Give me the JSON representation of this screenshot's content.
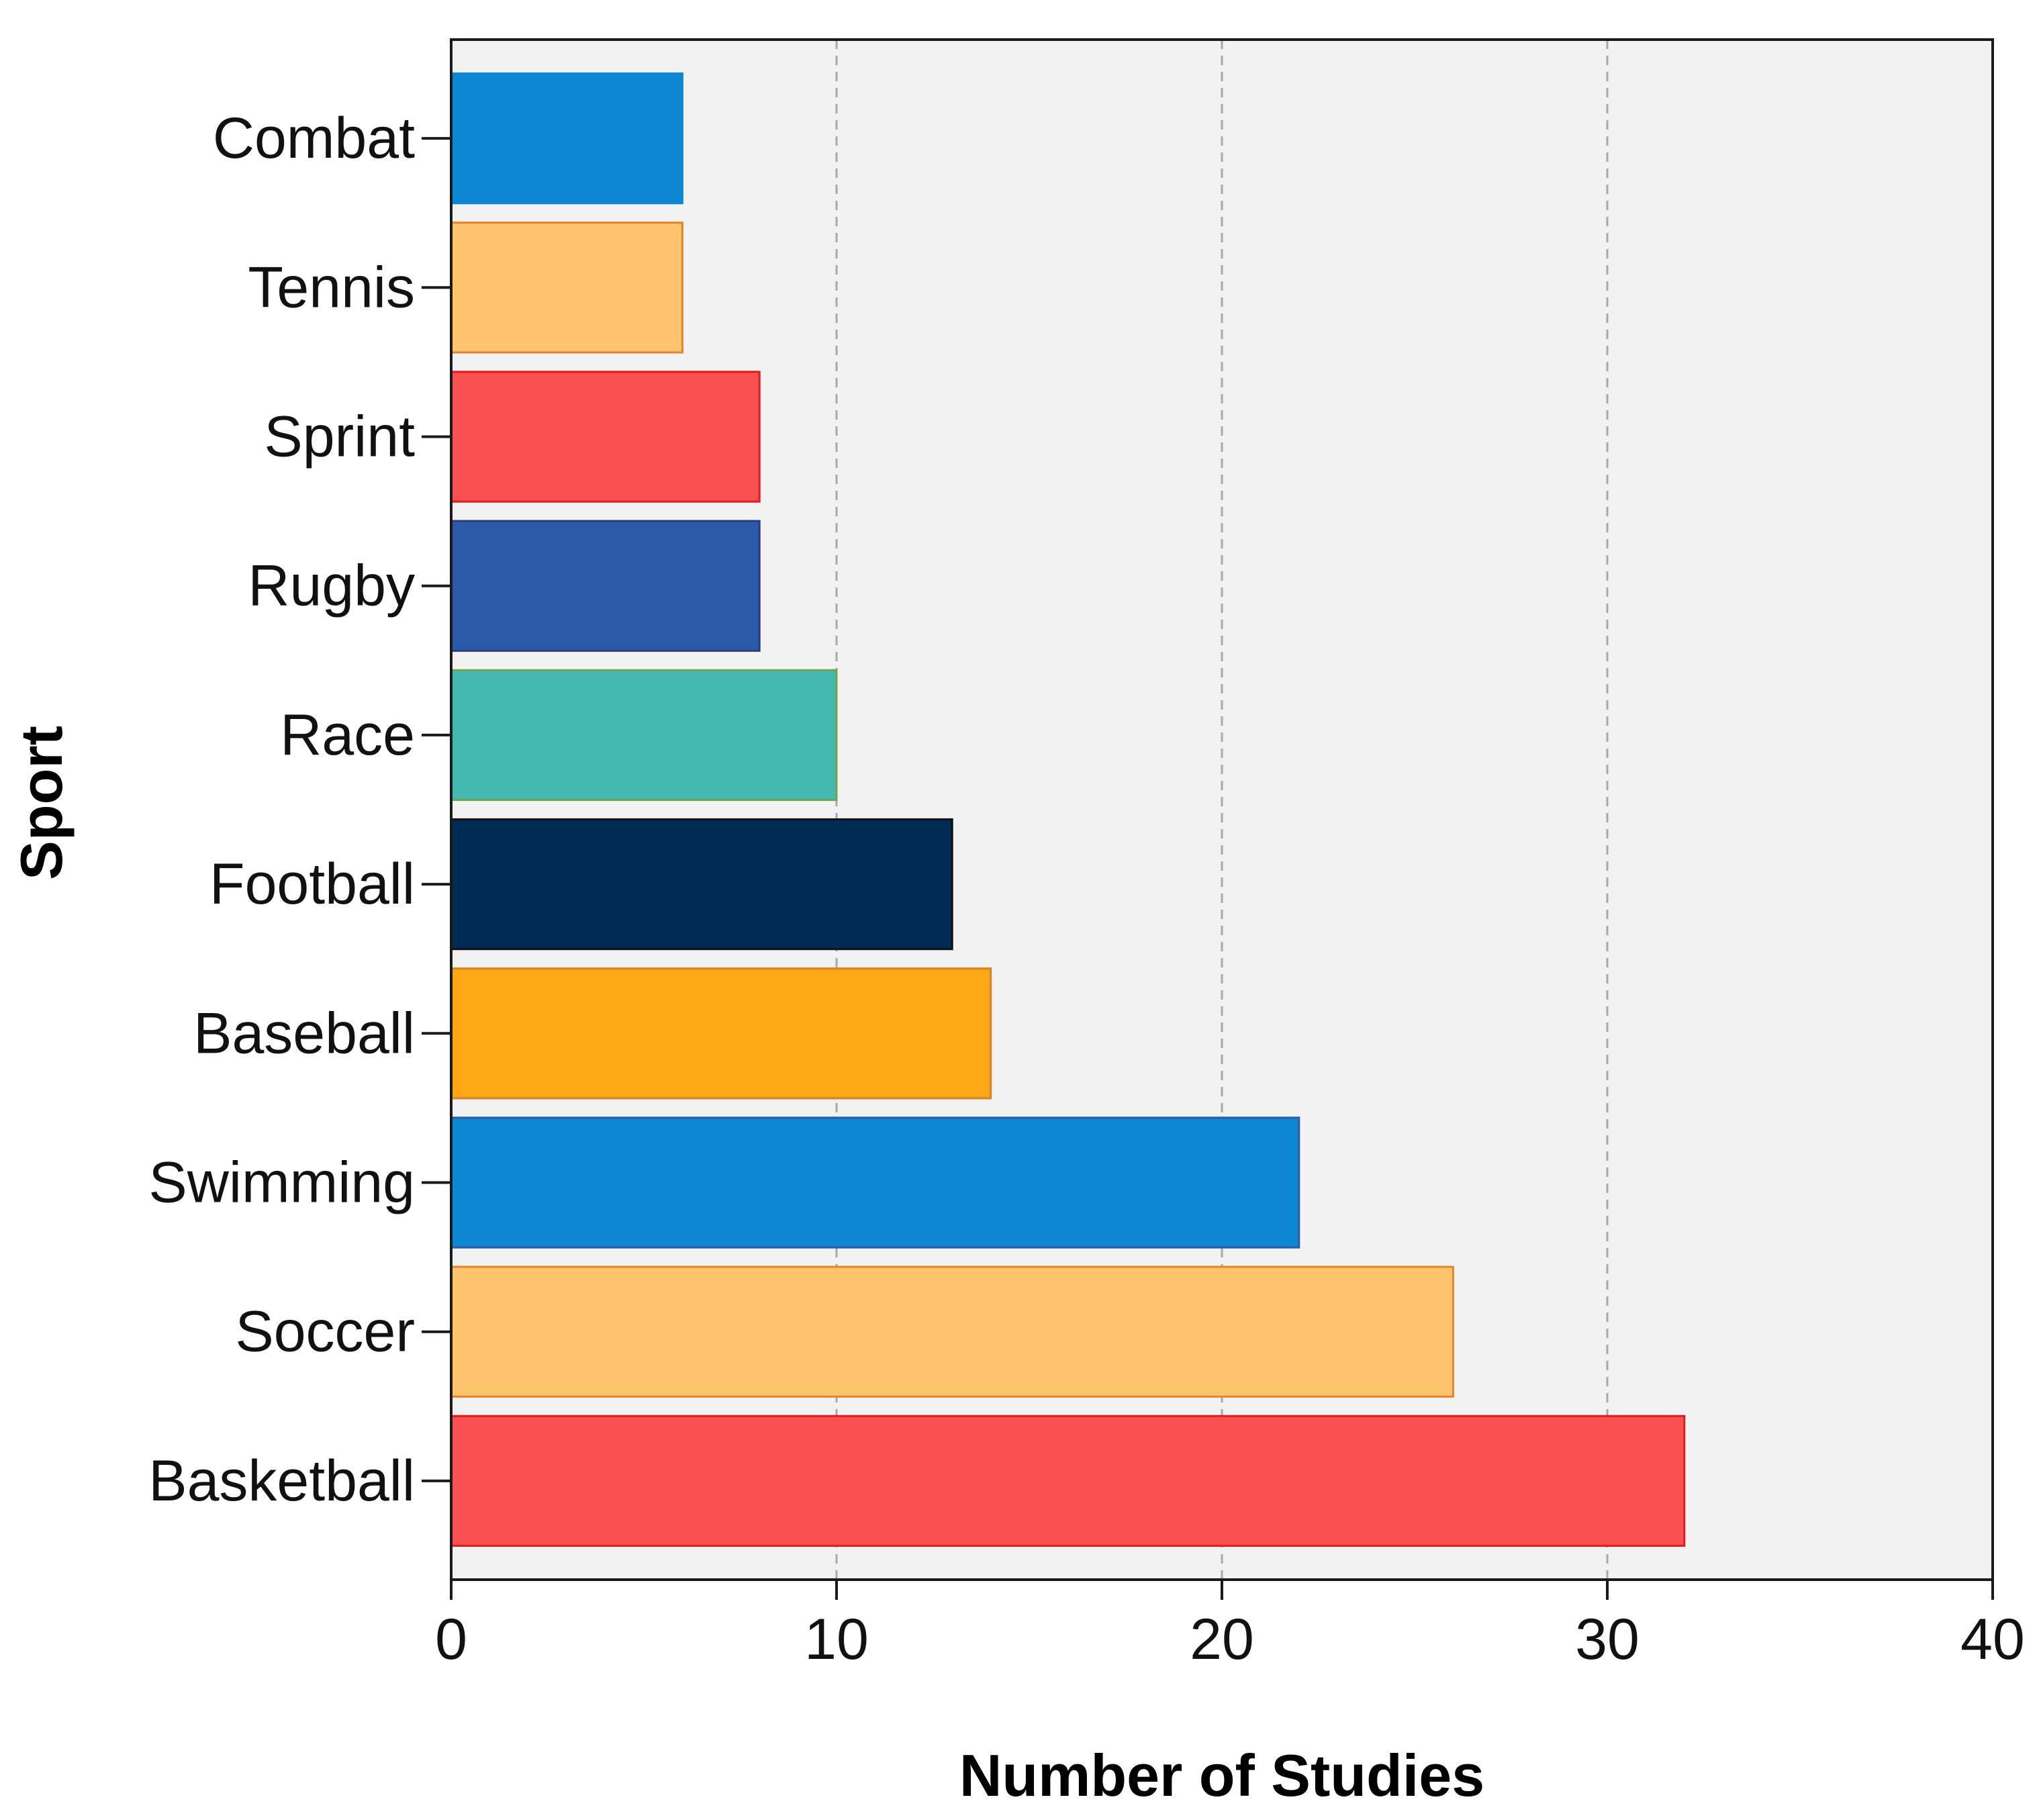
{
  "chart_data": {
    "type": "bar",
    "orientation": "horizontal",
    "title": "",
    "xlabel": "Number of Studies",
    "ylabel": "Sport",
    "xlim": [
      0,
      40
    ],
    "xticks": [
      "0",
      "10",
      "20",
      "30",
      "40"
    ],
    "grid": "vertical dashed gridlines at x ticks",
    "legend": "none",
    "plot_background": "#f2f2f2",
    "categories": [
      "Combat",
      "Tennis",
      "Sprint",
      "Rugby",
      "Race",
      "Football",
      "Baseball",
      "Swimming",
      "Soccer",
      "Basketball"
    ],
    "values": [
      6,
      6,
      8,
      8,
      10,
      13,
      14,
      22,
      26,
      32
    ],
    "colors": [
      "#0d88d0",
      "#fec56e",
      "#fa5252",
      "#2a5aa8",
      "#45b9af",
      "#002b55",
      "#fda714",
      "#0d88d0",
      "#fec56e",
      "#fa5252"
    ],
    "edge_colors": [
      "#0d88d0",
      "#e8822a",
      "#e31a1c",
      "#2a3f7a",
      "#6aa84f",
      "#111111",
      "#d9822b",
      "#2a5aa8",
      "#e8822a",
      "#e31a1c"
    ]
  }
}
